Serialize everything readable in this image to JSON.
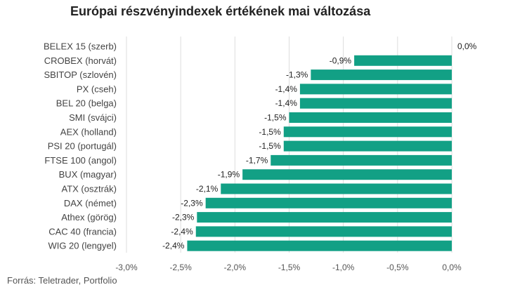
{
  "chart_data": {
    "type": "bar",
    "orientation": "horizontal",
    "title": "Európai részvényindexek értékének mai változása",
    "categories": [
      "BELEX 15 (szerb)",
      "CROBEX (horvát)",
      "SBITOP (szlovén)",
      "PX (cseh)",
      "BEL 20 (belga)",
      "SMI (svájci)",
      "AEX (holland)",
      "PSI 20 (portugál)",
      "FTSE 100 (angol)",
      "BUX (magyar)",
      "ATX (osztrák)",
      "DAX (német)",
      "Athex (görög)",
      "CAC 40 (francia)",
      "WIG 20 (lengyel)"
    ],
    "values": [
      0.0,
      -0.9,
      -1.3,
      -1.4,
      -1.4,
      -1.5,
      -1.55,
      -1.55,
      -1.67,
      -1.93,
      -2.13,
      -2.27,
      -2.35,
      -2.36,
      -2.44
    ],
    "value_labels": [
      "0,0%",
      "-0,9%",
      "-1,3%",
      "-1,4%",
      "-1,4%",
      "-1,5%",
      "-1,5%",
      "-1,5%",
      "-1,7%",
      "-1,9%",
      "-2,1%",
      "-2,3%",
      "-2,3%",
      "-2,4%",
      "-2,4%"
    ],
    "xlim": [
      -3.0,
      0.0
    ],
    "xticks": [
      -3.0,
      -2.5,
      -2.0,
      -1.5,
      -1.0,
      -0.5,
      0.0
    ],
    "xtick_labels": [
      "-3,0%",
      "-2,5%",
      "-2,0%",
      "-1,5%",
      "-1,0%",
      "-0,5%",
      "0,0%"
    ],
    "grid": true,
    "bar_color": "#12a085",
    "grid_color": "#dddddd",
    "source": "Forrás: Teletrader, Portfolio"
  }
}
